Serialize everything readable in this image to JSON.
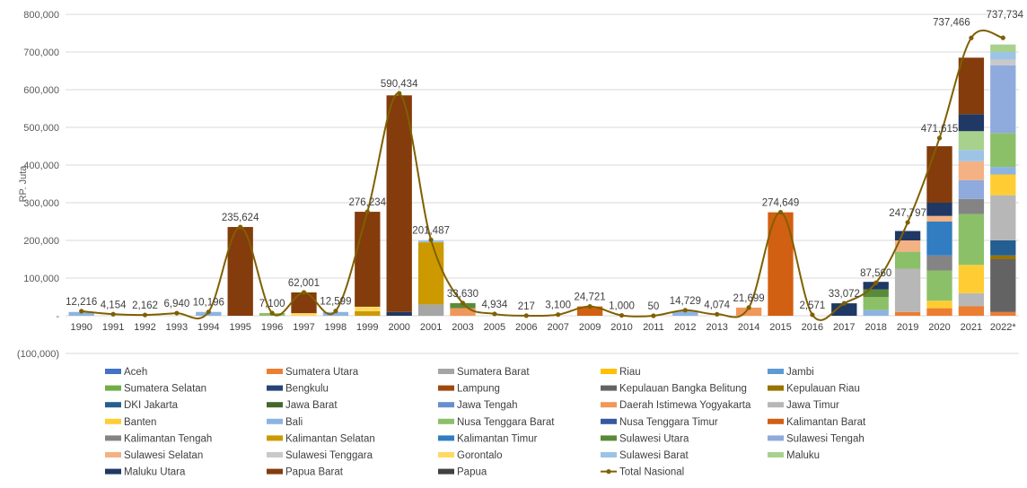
{
  "chart_data": {
    "type": "bar",
    "stacked": true,
    "title": "",
    "ylabel": "RP. Juta",
    "xlabel": "",
    "ylim": [
      -100000,
      800000
    ],
    "yticks": [
      -100000,
      0,
      100000,
      200000,
      300000,
      400000,
      500000,
      600000,
      700000,
      800000
    ],
    "ytick_labels": [
      "(100,000)",
      "-",
      "100,000",
      "200,000",
      "300,000",
      "400,000",
      "500,000",
      "600,000",
      "700,000",
      "800,000"
    ],
    "grid": true,
    "legend_position": "bottom",
    "categories": [
      "1990",
      "1991",
      "1992",
      "1993",
      "1994",
      "1995",
      "1996",
      "1997",
      "1998",
      "1999",
      "2000",
      "2001",
      "2003",
      "2005",
      "2006",
      "2007",
      "2009",
      "2010",
      "2011",
      "2012",
      "2013",
      "2014",
      "2015",
      "2016",
      "2017",
      "2018",
      "2019",
      "2020",
      "2021",
      "2022*"
    ],
    "total": {
      "name": "Total Nasional",
      "color": "#7f6000",
      "values": [
        12216,
        4154,
        2162,
        6940,
        10196,
        235624,
        7100,
        62001,
        12599,
        276234,
        590434,
        201487,
        33630,
        4934,
        217,
        3100,
        24721,
        1000,
        50,
        14729,
        4074,
        21699,
        274649,
        2571,
        33072,
        87560,
        247797,
        471615,
        737466,
        737734
      ],
      "labels": [
        "12,216",
        "4,154",
        "2,162",
        "6,940",
        "10,196",
        "235,624",
        "7,100",
        "62,001",
        "12,599",
        "276,234",
        "590,434",
        "201,487",
        "33,630",
        "4,934",
        "217",
        "3,100",
        "24,721",
        "1,000",
        "50",
        "14,729",
        "4,074",
        "21,699",
        "274,649",
        "2,571",
        "33,072",
        "87,560",
        "247,797",
        "471,615",
        "737,466",
        "737,734"
      ]
    },
    "series": [
      {
        "name": "Aceh",
        "color": "#4472c4",
        "values": [
          0,
          0,
          0,
          0,
          0,
          0,
          0,
          0,
          0,
          0,
          0,
          0,
          0,
          0,
          0,
          0,
          0,
          0,
          0,
          0,
          0,
          0,
          0,
          0,
          0,
          0,
          0,
          0,
          0,
          0
        ]
      },
      {
        "name": "Sumatera Utara",
        "color": "#ed7d31",
        "values": [
          0,
          0,
          0,
          0,
          0,
          0,
          0,
          0,
          0,
          0,
          0,
          0,
          0,
          0,
          0,
          0,
          0,
          0,
          0,
          0,
          0,
          0,
          0,
          0,
          0,
          0,
          10000,
          20000,
          25000,
          10000
        ]
      },
      {
        "name": "Sumatera Barat",
        "color": "#a5a5a5",
        "values": [
          0,
          0,
          0,
          0,
          0,
          0,
          0,
          0,
          0,
          0,
          0,
          30000,
          0,
          0,
          0,
          0,
          0,
          0,
          0,
          0,
          0,
          0,
          0,
          0,
          0,
          0,
          0,
          0,
          0,
          0
        ]
      },
      {
        "name": "Riau",
        "color": "#ffc000",
        "values": [
          0,
          0,
          0,
          0,
          0,
          0,
          0,
          0,
          0,
          0,
          0,
          0,
          0,
          0,
          0,
          0,
          0,
          0,
          0,
          0,
          0,
          0,
          0,
          0,
          0,
          0,
          0,
          0,
          0,
          0
        ]
      },
      {
        "name": "Jambi",
        "color": "#5b9bd5",
        "values": [
          0,
          0,
          0,
          0,
          0,
          0,
          0,
          0,
          0,
          0,
          0,
          0,
          0,
          0,
          0,
          0,
          0,
          0,
          0,
          0,
          0,
          0,
          0,
          0,
          0,
          0,
          0,
          0,
          0,
          0
        ]
      },
      {
        "name": "Sumatera Selatan",
        "color": "#70ad47",
        "values": [
          0,
          0,
          0,
          0,
          0,
          0,
          0,
          0,
          0,
          0,
          0,
          0,
          0,
          0,
          0,
          0,
          0,
          0,
          0,
          0,
          0,
          0,
          0,
          0,
          0,
          0,
          0,
          0,
          0,
          0
        ]
      },
      {
        "name": "Bengkulu",
        "color": "#264478",
        "values": [
          0,
          0,
          0,
          0,
          0,
          0,
          0,
          0,
          0,
          0,
          0,
          0,
          0,
          0,
          0,
          0,
          0,
          0,
          0,
          0,
          0,
          0,
          0,
          0,
          0,
          0,
          0,
          0,
          0,
          0
        ]
      },
      {
        "name": "Lampung",
        "color": "#9e480e",
        "values": [
          0,
          0,
          0,
          0,
          0,
          0,
          0,
          0,
          0,
          0,
          0,
          0,
          0,
          0,
          0,
          0,
          0,
          0,
          0,
          0,
          0,
          0,
          0,
          0,
          0,
          0,
          0,
          0,
          0,
          0
        ]
      },
      {
        "name": "Kepulauan Bangka Belitung",
        "color": "#636363",
        "values": [
          0,
          0,
          0,
          0,
          0,
          0,
          0,
          0,
          0,
          0,
          0,
          0,
          0,
          0,
          0,
          0,
          0,
          0,
          0,
          0,
          0,
          0,
          0,
          0,
          0,
          0,
          0,
          0,
          0,
          140000
        ]
      },
      {
        "name": "Kepulauan Riau",
        "color": "#997300",
        "values": [
          0,
          0,
          0,
          0,
          0,
          0,
          0,
          0,
          0,
          0,
          0,
          0,
          0,
          0,
          0,
          0,
          0,
          0,
          0,
          0,
          0,
          0,
          0,
          0,
          0,
          0,
          0,
          0,
          0,
          10000
        ]
      },
      {
        "name": "DKI Jakarta",
        "color": "#255e91",
        "values": [
          0,
          0,
          0,
          0,
          0,
          0,
          0,
          0,
          0,
          0,
          0,
          0,
          0,
          0,
          0,
          0,
          0,
          0,
          0,
          0,
          0,
          0,
          0,
          0,
          0,
          0,
          0,
          0,
          0,
          40000
        ]
      },
      {
        "name": "Jawa Barat",
        "color": "#43682b",
        "values": [
          0,
          0,
          0,
          0,
          0,
          0,
          0,
          0,
          0,
          0,
          0,
          0,
          0,
          0,
          0,
          0,
          0,
          0,
          0,
          0,
          0,
          0,
          0,
          0,
          0,
          0,
          0,
          0,
          0,
          0
        ]
      },
      {
        "name": "Jawa Tengah",
        "color": "#698ed0",
        "values": [
          0,
          0,
          0,
          0,
          0,
          0,
          0,
          0,
          0,
          0,
          0,
          0,
          0,
          0,
          0,
          0,
          0,
          0,
          0,
          0,
          0,
          0,
          0,
          0,
          0,
          0,
          0,
          0,
          0,
          0
        ]
      },
      {
        "name": "Daerah Istimewa Yogyakarta",
        "color": "#f1975a",
        "values": [
          0,
          0,
          0,
          0,
          0,
          0,
          0,
          0,
          0,
          0,
          0,
          0,
          20000,
          0,
          0,
          0,
          0,
          0,
          0,
          0,
          0,
          21699,
          0,
          0,
          0,
          0,
          0,
          0,
          0,
          0
        ]
      },
      {
        "name": "Jawa Timur",
        "color": "#b7b7b7",
        "values": [
          0,
          0,
          0,
          0,
          0,
          0,
          0,
          0,
          0,
          0,
          0,
          0,
          0,
          0,
          0,
          0,
          0,
          0,
          0,
          0,
          0,
          0,
          0,
          0,
          0,
          0,
          115000,
          0,
          35000,
          120000
        ]
      },
      {
        "name": "Banten",
        "color": "#ffcd33",
        "values": [
          0,
          0,
          0,
          0,
          0,
          0,
          0,
          0,
          0,
          0,
          0,
          0,
          0,
          0,
          0,
          0,
          0,
          0,
          0,
          0,
          0,
          0,
          0,
          0,
          0,
          0,
          0,
          20000,
          75000,
          55000
        ]
      },
      {
        "name": "Bali",
        "color": "#8cb4e2",
        "values": [
          10000,
          0,
          0,
          0,
          10196,
          0,
          0,
          0,
          10000,
          0,
          0,
          0,
          0,
          0,
          0,
          0,
          0,
          0,
          0,
          12000,
          0,
          0,
          0,
          0,
          0,
          15000,
          0,
          0,
          0,
          20000
        ]
      },
      {
        "name": "Nusa Tenggara Barat",
        "color": "#8bc069",
        "values": [
          0,
          0,
          0,
          0,
          0,
          0,
          7100,
          0,
          0,
          0,
          0,
          0,
          0,
          0,
          0,
          0,
          0,
          0,
          0,
          0,
          0,
          0,
          0,
          0,
          0,
          35000,
          45000,
          80000,
          135000,
          90000
        ]
      },
      {
        "name": "Nusa Tenggara Timur",
        "color": "#335aa1",
        "values": [
          0,
          0,
          0,
          0,
          0,
          0,
          0,
          0,
          0,
          0,
          0,
          0,
          0,
          0,
          0,
          0,
          0,
          0,
          0,
          0,
          0,
          0,
          0,
          0,
          0,
          0,
          0,
          0,
          0,
          0
        ]
      },
      {
        "name": "Kalimantan Barat",
        "color": "#d26012",
        "values": [
          0,
          0,
          0,
          0,
          0,
          0,
          0,
          0,
          0,
          0,
          0,
          0,
          0,
          0,
          0,
          0,
          24721,
          0,
          0,
          0,
          0,
          0,
          274649,
          0,
          0,
          0,
          0,
          0,
          0,
          0
        ]
      },
      {
        "name": "Kalimantan Tengah",
        "color": "#848484",
        "values": [
          0,
          0,
          0,
          0,
          0,
          0,
          0,
          0,
          0,
          0,
          0,
          0,
          0,
          0,
          0,
          0,
          0,
          0,
          0,
          0,
          0,
          0,
          0,
          0,
          0,
          0,
          0,
          40000,
          40000,
          0
        ]
      },
      {
        "name": "Kalimantan Selatan",
        "color": "#cc9a00",
        "values": [
          0,
          0,
          0,
          0,
          0,
          0,
          0,
          0,
          0,
          12000,
          0,
          165000,
          0,
          0,
          0,
          0,
          0,
          0,
          0,
          0,
          0,
          0,
          0,
          0,
          0,
          0,
          0,
          0,
          0,
          0
        ]
      },
      {
        "name": "Kalimantan Timur",
        "color": "#327dc2",
        "values": [
          0,
          0,
          0,
          0,
          0,
          0,
          0,
          0,
          0,
          0,
          0,
          0,
          0,
          0,
          0,
          0,
          0,
          0,
          0,
          0,
          0,
          0,
          0,
          0,
          0,
          0,
          0,
          90000,
          0,
          0
        ]
      },
      {
        "name": "Sulawesi Utara",
        "color": "#5a8a39",
        "values": [
          0,
          0,
          0,
          0,
          0,
          0,
          0,
          0,
          0,
          0,
          0,
          0,
          13630,
          0,
          0,
          0,
          0,
          0,
          0,
          0,
          0,
          0,
          0,
          0,
          0,
          20000,
          0,
          0,
          0,
          0
        ]
      },
      {
        "name": "Sulawesi Tengah",
        "color": "#8faadc",
        "values": [
          0,
          0,
          0,
          0,
          0,
          0,
          0,
          0,
          0,
          0,
          0,
          0,
          0,
          0,
          0,
          0,
          0,
          0,
          0,
          0,
          0,
          0,
          0,
          0,
          0,
          0,
          0,
          0,
          50000,
          180000
        ]
      },
      {
        "name": "Sulawesi Selatan",
        "color": "#f4b183",
        "values": [
          0,
          0,
          0,
          0,
          0,
          0,
          0,
          0,
          0,
          0,
          0,
          0,
          0,
          0,
          0,
          0,
          0,
          0,
          0,
          0,
          0,
          0,
          0,
          0,
          0,
          0,
          30000,
          15000,
          50000,
          0
        ]
      },
      {
        "name": "Sulawesi Tenggara",
        "color": "#c9c9c9",
        "values": [
          0,
          0,
          0,
          0,
          0,
          0,
          0,
          0,
          0,
          0,
          0,
          0,
          0,
          0,
          0,
          0,
          0,
          0,
          0,
          0,
          0,
          0,
          0,
          0,
          0,
          0,
          0,
          0,
          0,
          15000
        ]
      },
      {
        "name": "Gorontalo",
        "color": "#ffd966",
        "values": [
          0,
          0,
          0,
          0,
          0,
          0,
          0,
          7000,
          0,
          12000,
          0,
          0,
          0,
          0,
          0,
          0,
          0,
          0,
          0,
          0,
          0,
          0,
          0,
          0,
          0,
          0,
          0,
          0,
          0,
          0
        ]
      },
      {
        "name": "Sulawesi Barat",
        "color": "#9dc3e6",
        "values": [
          0,
          0,
          0,
          0,
          0,
          0,
          0,
          0,
          0,
          0,
          0,
          5000,
          0,
          0,
          0,
          0,
          0,
          0,
          0,
          0,
          0,
          0,
          0,
          0,
          0,
          0,
          0,
          0,
          30000,
          20000
        ]
      },
      {
        "name": "Maluku",
        "color": "#a9d18e",
        "values": [
          0,
          0,
          0,
          0,
          0,
          0,
          0,
          0,
          0,
          0,
          0,
          0,
          0,
          0,
          0,
          0,
          0,
          0,
          0,
          0,
          0,
          0,
          0,
          0,
          0,
          0,
          0,
          0,
          50000,
          20000
        ]
      },
      {
        "name": "Maluku Utara",
        "color": "#1f3864",
        "values": [
          0,
          0,
          0,
          0,
          0,
          0,
          0,
          0,
          0,
          0,
          10000,
          0,
          0,
          0,
          0,
          0,
          0,
          0,
          0,
          0,
          0,
          0,
          0,
          0,
          33072,
          20000,
          25000,
          35000,
          45000,
          0
        ]
      },
      {
        "name": "Papua Barat",
        "color": "#843c0c",
        "values": [
          0,
          0,
          0,
          0,
          0,
          235624,
          0,
          55000,
          0,
          252000,
          575000,
          0,
          0,
          0,
          0,
          0,
          0,
          0,
          0,
          0,
          0,
          0,
          0,
          0,
          0,
          0,
          0,
          150000,
          150000,
          0
        ]
      },
      {
        "name": "Papua",
        "color": "#404040",
        "values": [
          0,
          0,
          0,
          0,
          0,
          0,
          0,
          0,
          0,
          0,
          0,
          0,
          0,
          0,
          0,
          0,
          0,
          0,
          0,
          0,
          0,
          0,
          0,
          0,
          0,
          0,
          0,
          0,
          0,
          0
        ]
      }
    ]
  }
}
